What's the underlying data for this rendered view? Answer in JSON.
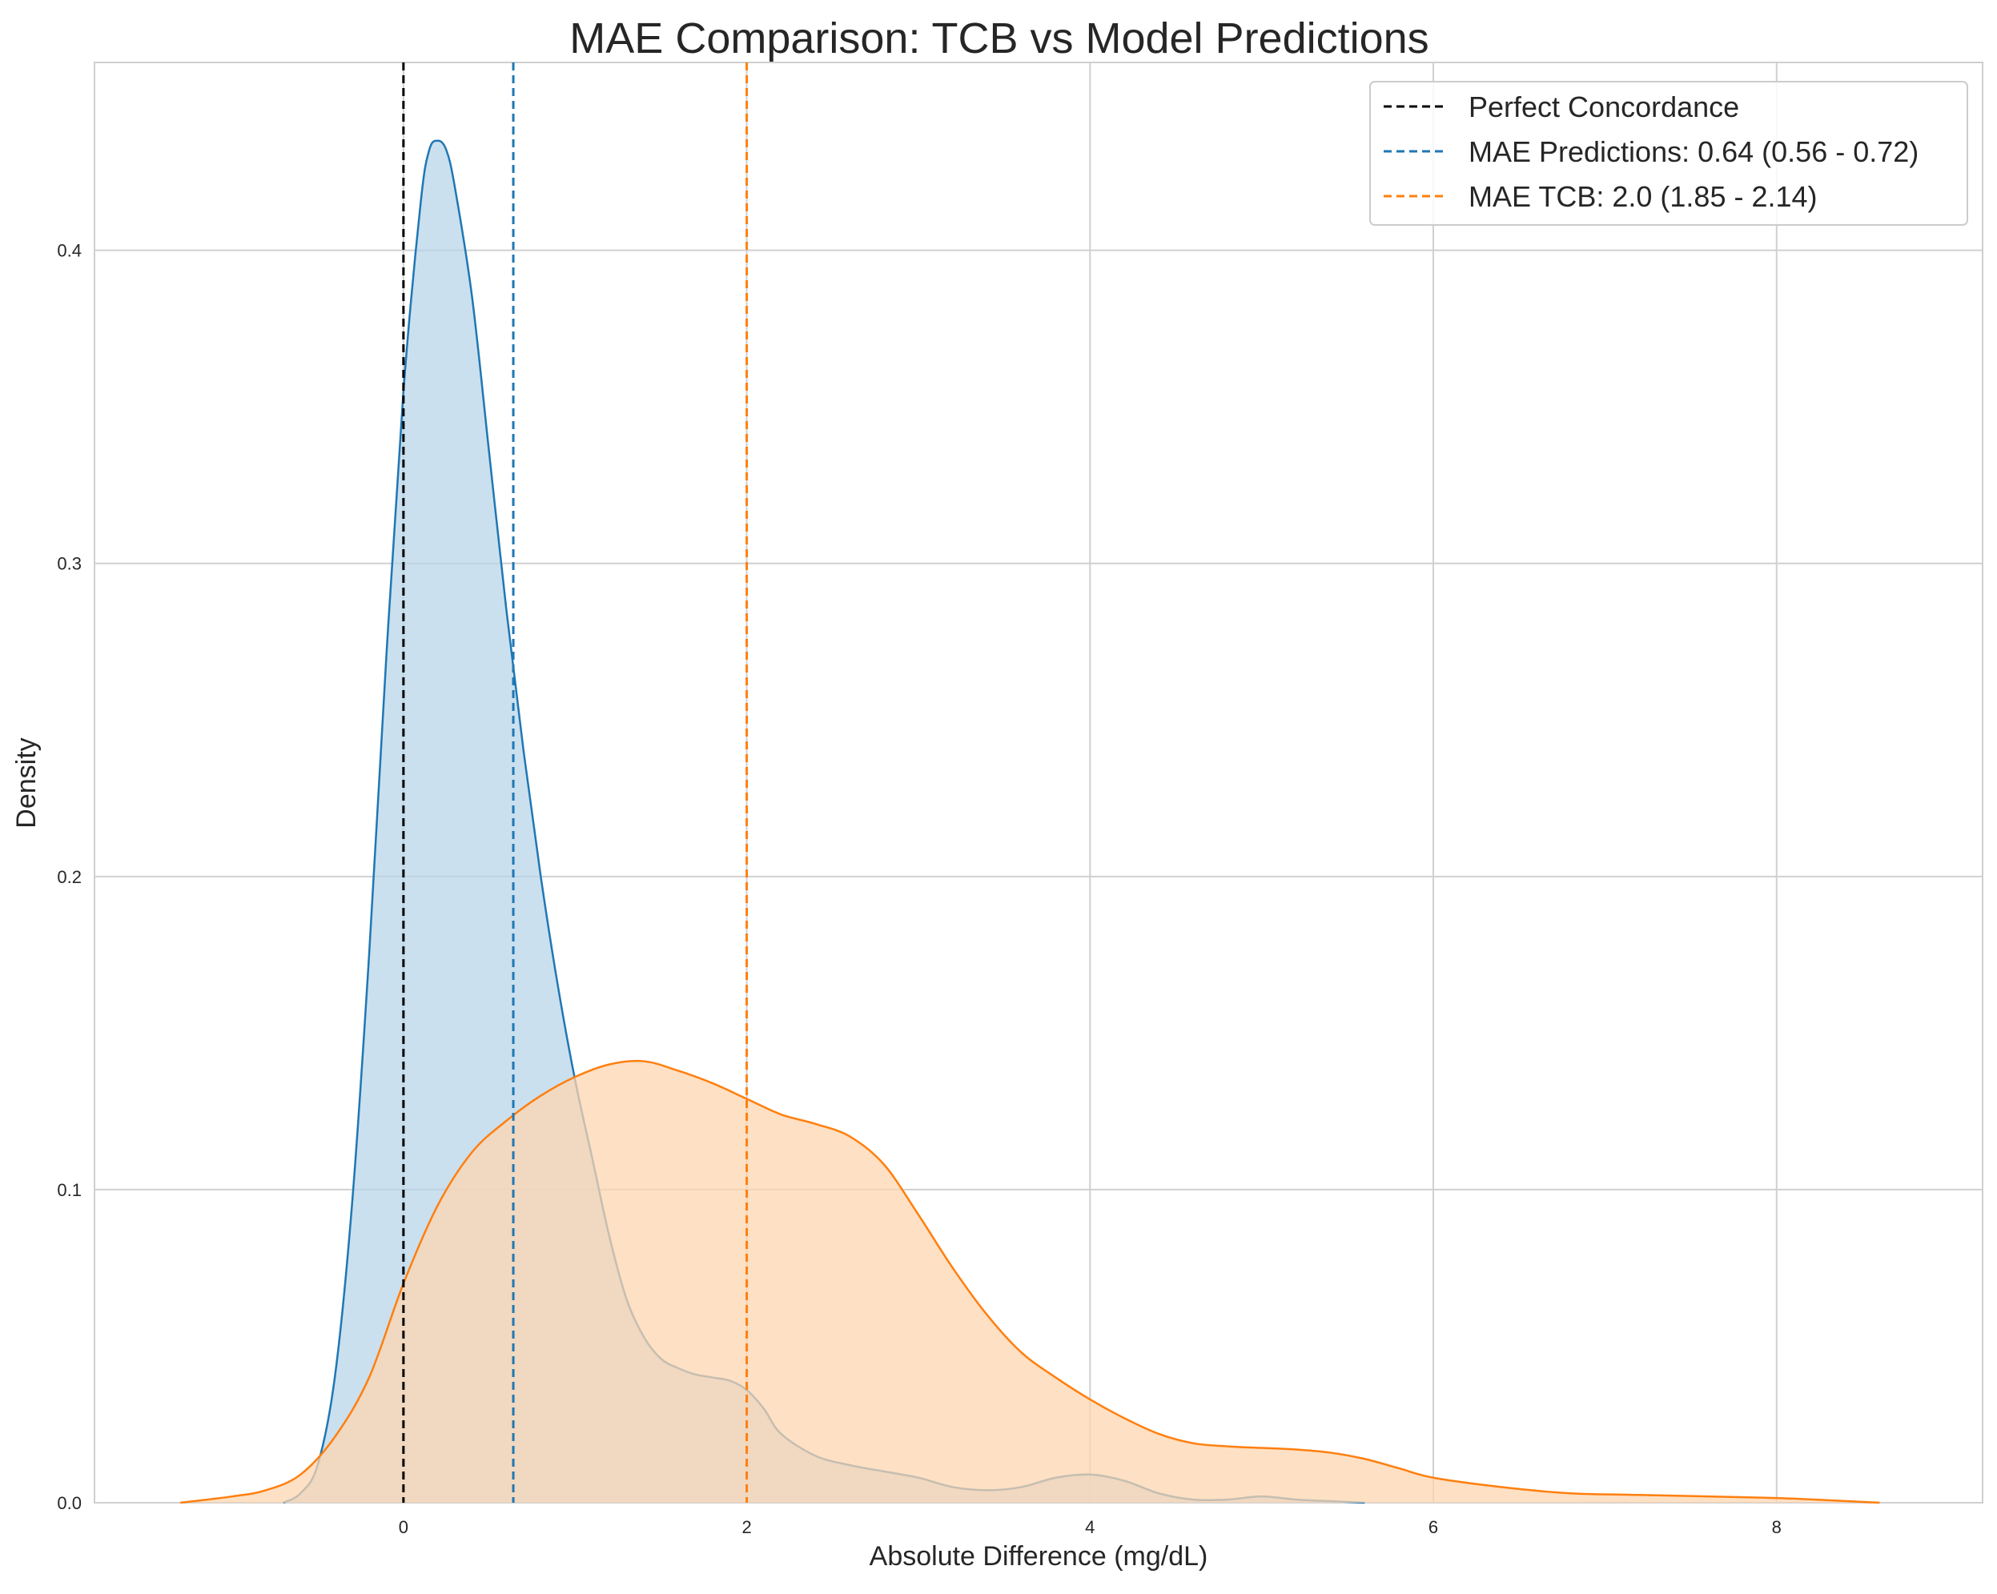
{
  "chart_data": {
    "type": "area",
    "title": "MAE Comparison: TCB vs Model Predictions",
    "xlabel": "Absolute Difference (mg/dL)",
    "ylabel": "Density",
    "xlim": [
      -1.8,
      9.2
    ],
    "ylim": [
      0,
      0.46
    ],
    "x_ticks": [
      0,
      2,
      4,
      6,
      8
    ],
    "y_ticks": [
      0.0,
      0.1,
      0.2,
      0.3,
      0.4
    ],
    "x_tick_labels": [
      "0",
      "2",
      "4",
      "6",
      "8"
    ],
    "y_tick_labels": [
      "0.0",
      "0.1",
      "0.2",
      "0.3",
      "0.4"
    ],
    "grid": true,
    "legend_position": "top-right",
    "series": [
      {
        "key": "predictions",
        "color": "#1f77b4",
        "fill": "#b8d5ea",
        "x": [
          -0.7,
          -0.6,
          -0.5,
          -0.4,
          -0.3,
          -0.2,
          -0.1,
          0,
          0.1,
          0.15,
          0.2,
          0.25,
          0.3,
          0.4,
          0.5,
          0.6,
          0.7,
          0.8,
          0.9,
          1.0,
          1.1,
          1.2,
          1.3,
          1.4,
          1.5,
          1.6,
          1.7,
          1.8,
          1.9,
          2.0,
          2.1,
          2.2,
          2.4,
          2.6,
          2.8,
          3.0,
          3.2,
          3.4,
          3.6,
          3.8,
          4.0,
          4.2,
          4.4,
          4.6,
          4.8,
          5.0,
          5.2,
          5.4,
          5.6
        ],
        "y": [
          0.0,
          0.003,
          0.012,
          0.04,
          0.095,
          0.175,
          0.27,
          0.355,
          0.415,
          0.432,
          0.435,
          0.432,
          0.42,
          0.385,
          0.335,
          0.285,
          0.24,
          0.2,
          0.165,
          0.135,
          0.11,
          0.085,
          0.065,
          0.053,
          0.046,
          0.043,
          0.041,
          0.04,
          0.039,
          0.036,
          0.03,
          0.022,
          0.015,
          0.012,
          0.01,
          0.008,
          0.005,
          0.004,
          0.005,
          0.008,
          0.009,
          0.007,
          0.003,
          0.001,
          0.001,
          0.002,
          0.001,
          0.0005,
          0.0
        ]
      },
      {
        "key": "tcb",
        "color": "#ff7f0e",
        "fill": "#fed6b0",
        "x": [
          -1.3,
          -1.0,
          -0.8,
          -0.6,
          -0.4,
          -0.2,
          0,
          0.2,
          0.4,
          0.6,
          0.8,
          1.0,
          1.2,
          1.4,
          1.6,
          1.8,
          2.0,
          2.2,
          2.4,
          2.6,
          2.8,
          3.0,
          3.2,
          3.4,
          3.6,
          3.8,
          4.0,
          4.2,
          4.4,
          4.6,
          4.8,
          5.0,
          5.2,
          5.4,
          5.6,
          5.8,
          6.0,
          6.4,
          6.8,
          7.2,
          7.6,
          8.0,
          8.3,
          8.6
        ],
        "y": [
          0.0,
          0.002,
          0.004,
          0.009,
          0.021,
          0.04,
          0.07,
          0.095,
          0.112,
          0.122,
          0.13,
          0.136,
          0.14,
          0.141,
          0.138,
          0.134,
          0.129,
          0.124,
          0.121,
          0.117,
          0.108,
          0.092,
          0.075,
          0.06,
          0.048,
          0.04,
          0.033,
          0.027,
          0.022,
          0.019,
          0.018,
          0.0175,
          0.017,
          0.016,
          0.014,
          0.011,
          0.008,
          0.005,
          0.003,
          0.0025,
          0.002,
          0.0015,
          0.0008,
          0.0
        ]
      }
    ],
    "reference_lines": [
      {
        "key": "perfect",
        "x": 0,
        "color": "#000000",
        "label": "Perfect Concordance"
      },
      {
        "key": "mae_pred",
        "x": 0.64,
        "color": "#1f77b4",
        "label": "MAE Predictions: 0.64 (0.56 - 0.72)"
      },
      {
        "key": "mae_tcb",
        "x": 2.0,
        "color": "#ff7f0e",
        "label": "MAE TCB: 2.0 (1.85 - 2.14)"
      }
    ]
  }
}
